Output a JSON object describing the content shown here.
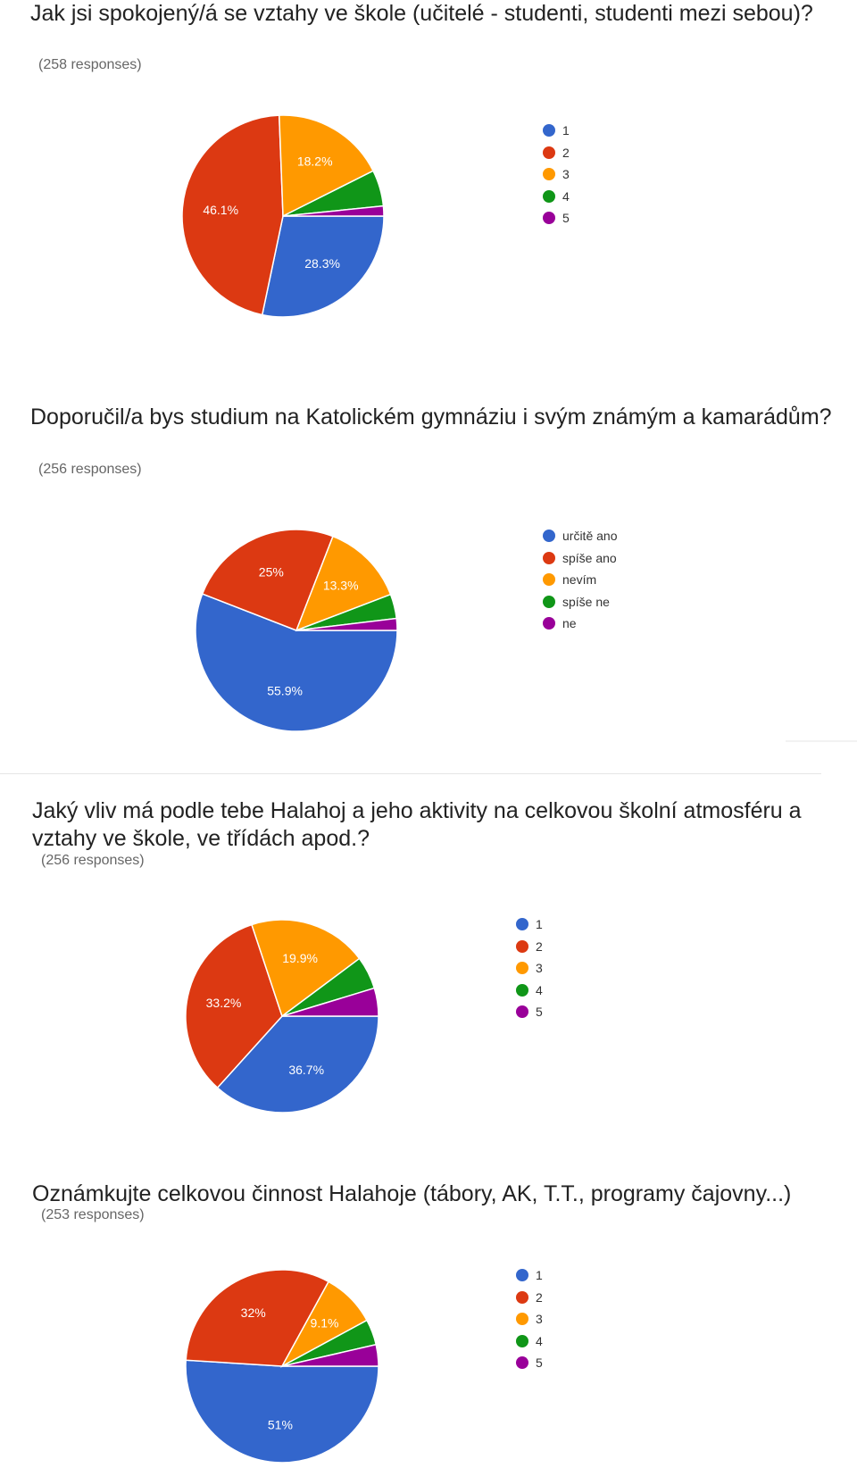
{
  "colors": {
    "1": "#3366cc",
    "2": "#dc3912",
    "3": "#ff9900",
    "4": "#109618",
    "5": "#990099"
  },
  "chart_data": [
    {
      "type": "pie",
      "title": "Jak jsi spokojený/á se vztahy ve škole (učitelé - studenti, studenti mezi sebou)?",
      "subtitle": "(258 responses)",
      "categories": [
        "1",
        "2",
        "3",
        "4",
        "5"
      ],
      "values": [
        28.3,
        46.1,
        18.2,
        5.8,
        1.6
      ],
      "labels": [
        "28.3%",
        "46.1%",
        "18.2%",
        "",
        ""
      ],
      "colors": [
        "#3366cc",
        "#dc3912",
        "#ff9900",
        "#109618",
        "#990099"
      ],
      "legend_position": "right"
    },
    {
      "type": "pie",
      "title": "Doporučil/a bys studium na Katolickém gymnáziu i svým známým a kamarádům?",
      "subtitle": "(256 responses)",
      "categories": [
        "určitě ano",
        "spíše ano",
        "nevím",
        "spíše ne",
        "ne"
      ],
      "values": [
        55.9,
        25,
        13.3,
        3.9,
        1.9
      ],
      "labels": [
        "55.9%",
        "25%",
        "13.3%",
        "",
        ""
      ],
      "colors": [
        "#3366cc",
        "#dc3912",
        "#ff9900",
        "#109618",
        "#990099"
      ],
      "legend_position": "right"
    },
    {
      "type": "pie",
      "title": "Jaký vliv má podle tebe Halahoj a jeho aktivity na celkovou školní atmosféru a vztahy ve škole, ve třídách apod.?",
      "subtitle": "(256 responses)",
      "categories": [
        "1",
        "2",
        "3",
        "4",
        "5"
      ],
      "values": [
        36.7,
        33.2,
        19.9,
        5.5,
        4.7
      ],
      "labels": [
        "36.7%",
        "33.2%",
        "19.9%",
        "",
        ""
      ],
      "colors": [
        "#3366cc",
        "#dc3912",
        "#ff9900",
        "#109618",
        "#990099"
      ],
      "legend_position": "right"
    },
    {
      "type": "pie",
      "title": "Oznámkujte celkovou činnost Halahoje (tábory, AK, T.T., programy čajovny...)",
      "subtitle": "(253 responses)",
      "categories": [
        "1",
        "2",
        "3",
        "4",
        "5"
      ],
      "values": [
        51,
        32,
        9.1,
        4.3,
        3.6
      ],
      "labels": [
        "51%",
        "32%",
        "9.1%",
        "",
        ""
      ],
      "colors": [
        "#3366cc",
        "#dc3912",
        "#ff9900",
        "#109618",
        "#990099"
      ],
      "legend_position": "right"
    }
  ]
}
